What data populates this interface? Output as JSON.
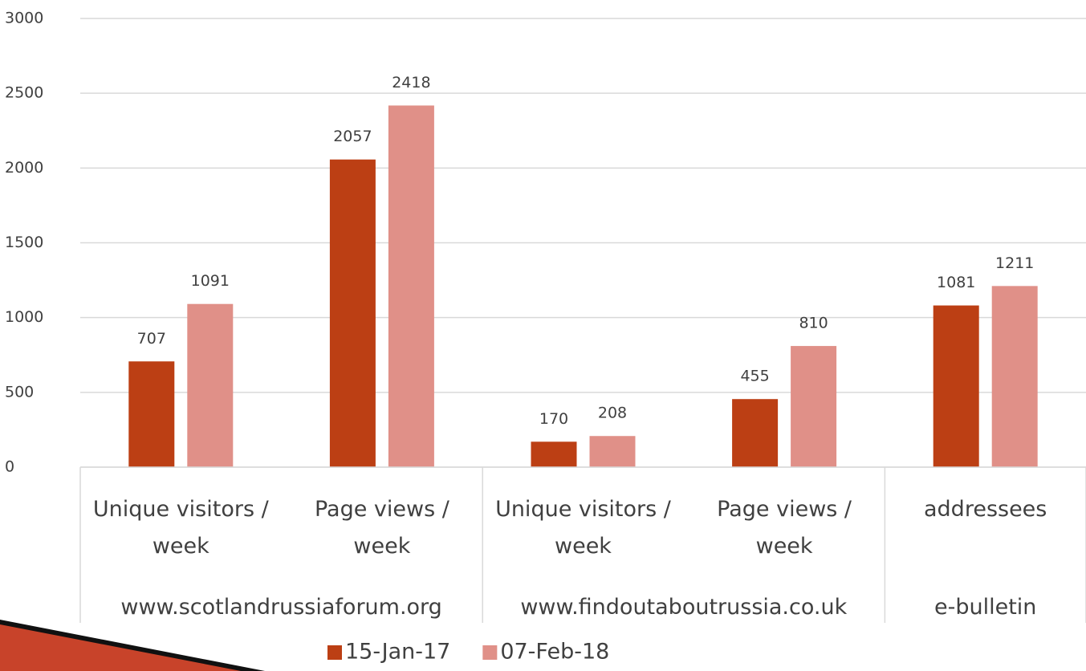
{
  "chart_data": {
    "type": "bar",
    "groups": [
      {
        "name": "www.scotlandrussiaforum.org",
        "categories": [
          "Unique visitors / week",
          "Page views / week"
        ]
      },
      {
        "name": "www.findoutaboutrussia.co.uk",
        "categories": [
          "Unique visitors / week",
          "Page views / week"
        ]
      },
      {
        "name": "e-bulletin",
        "categories": [
          "addressees"
        ]
      }
    ],
    "series": [
      {
        "name": "15-Jan-17",
        "color": "#bc3f14",
        "values": [
          707,
          2057,
          170,
          455,
          1081
        ]
      },
      {
        "name": "07-Feb-18",
        "color": "#e09088",
        "values": [
          1091,
          2418,
          208,
          810,
          1211
        ]
      }
    ],
    "ylim": [
      0,
      3000
    ],
    "yticks": [
      0,
      500,
      1000,
      1500,
      2000,
      2500,
      3000
    ],
    "grid": true,
    "legend": "bottom"
  }
}
